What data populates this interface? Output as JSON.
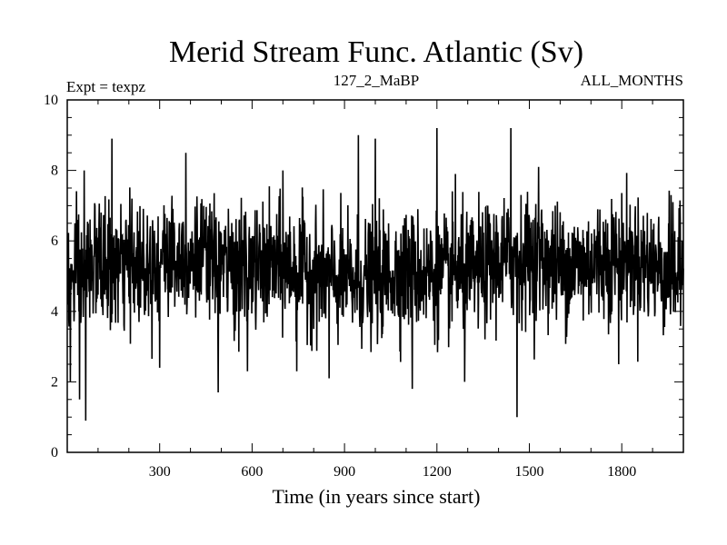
{
  "chart_data": {
    "type": "line",
    "title": "Merid Stream Func. Atlantic (Sv)",
    "subtitle_left": "Expt = texpz",
    "subtitle_center": "127_2_MaBP",
    "subtitle_right": "ALL_MONTHS",
    "xlabel": "Time (in years since start)",
    "ylabel": "",
    "xlim": [
      0,
      2000
    ],
    "ylim": [
      0,
      10
    ],
    "x_ticks": [
      300,
      600,
      900,
      1200,
      1500,
      1800
    ],
    "y_ticks": [
      0,
      2,
      4,
      6,
      8,
      10
    ],
    "grid": false,
    "series": [
      {
        "x_start": 1,
        "x_step": 1,
        "base_mean": 5.2,
        "noise_sd": 0.85,
        "color": "#000000",
        "extremes": [
          [
            10,
            2.0
          ],
          [
            25,
            6.5
          ],
          [
            40,
            1.5
          ],
          [
            55,
            8.0
          ],
          [
            60,
            0.9
          ],
          [
            80,
            5.9
          ],
          [
            145,
            8.9
          ],
          [
            210,
            7.2
          ],
          [
            300,
            2.4
          ],
          [
            385,
            8.5
          ],
          [
            490,
            1.7
          ],
          [
            585,
            2.3
          ],
          [
            700,
            8.0
          ],
          [
            745,
            2.3
          ],
          [
            850,
            2.1
          ],
          [
            945,
            9.0
          ],
          [
            1000,
            8.9
          ],
          [
            1120,
            1.8
          ],
          [
            1200,
            9.2
          ],
          [
            1260,
            7.9
          ],
          [
            1290,
            2.0
          ],
          [
            1440,
            9.2
          ],
          [
            1460,
            1.0
          ],
          [
            1530,
            8.1
          ],
          [
            1790,
            2.5
          ],
          [
            1960,
            7.3
          ]
        ]
      }
    ]
  }
}
